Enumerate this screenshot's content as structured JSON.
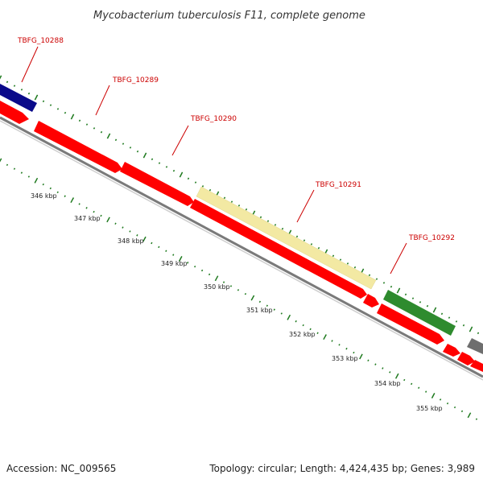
{
  "title": "Mycobacterium tuberculosis F11, complete genome",
  "footer": {
    "accession": "Accession: NC_009565",
    "summary": "Topology: circular; Length: 4,424,435 bp; Genes: 3,989"
  },
  "colors": {
    "cds": "#ff0000",
    "highlight_pale": "#f3e9a3",
    "highlight_green": "#2e8b2e",
    "navy": "#0a0a8a",
    "gray": "#6e6e6e",
    "label": "#cc0000",
    "tick": "#1f7a1f",
    "backbone": "#888888"
  },
  "gene_labels": [
    {
      "id": "TBFG_10288",
      "text": "TBFG_10288"
    },
    {
      "id": "TBFG_10289",
      "text": "TBFG_10289"
    },
    {
      "id": "TBFG_10290",
      "text": "TBFG_10290"
    },
    {
      "id": "TBFG_10291",
      "text": "TBFG_10291"
    },
    {
      "id": "TBFG_10292",
      "text": "TBFG_10292"
    }
  ],
  "kbp_labels": [
    "346 kbp",
    "347 kbp",
    "348 kbp",
    "349 kbp",
    "350 kbp",
    "351 kbp",
    "352 kbp",
    "353 kbp",
    "354 kbp",
    "355 kbp"
  ]
}
